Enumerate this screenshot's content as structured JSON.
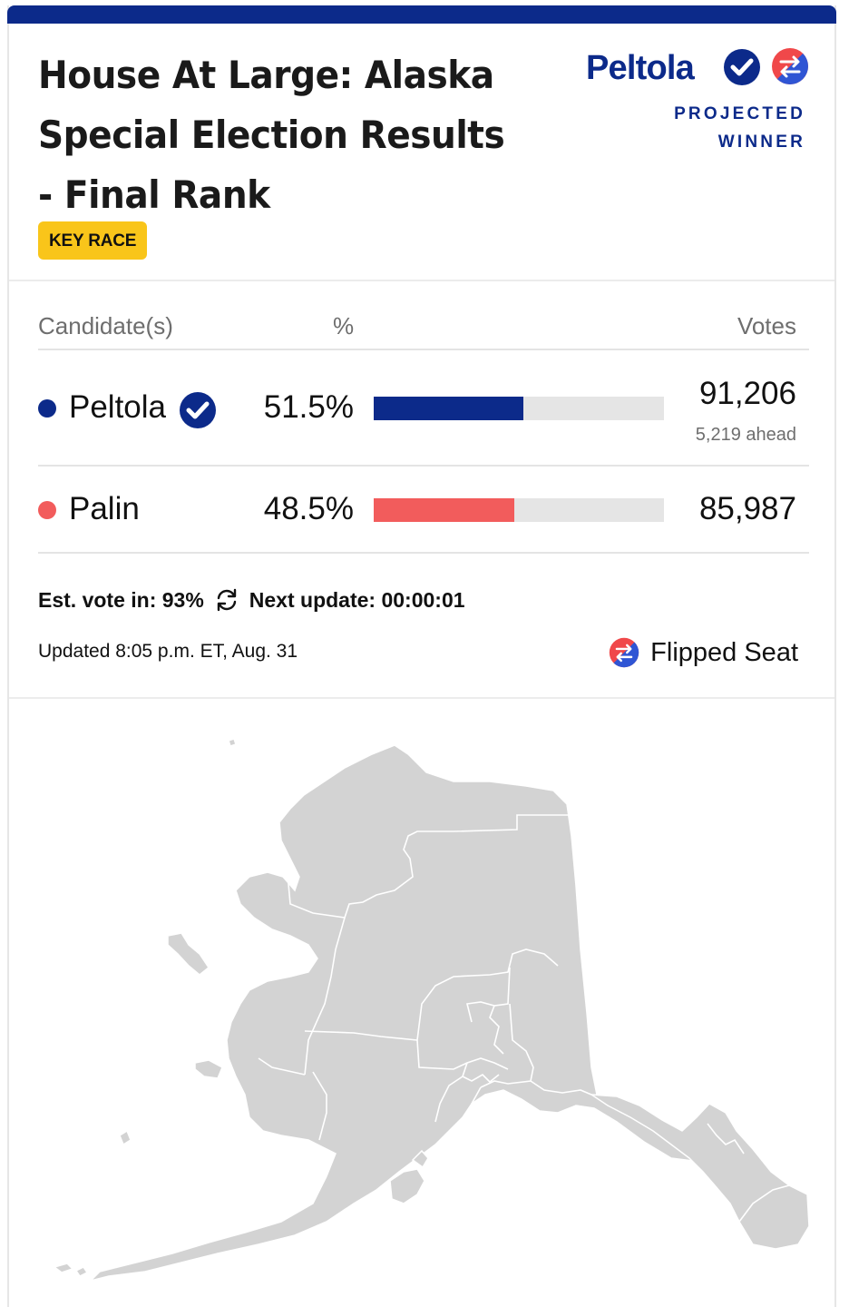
{
  "race": {
    "title": "House At Large: Alaska Special Election Results - Final Rank",
    "badge": "KEY RACE"
  },
  "winner": {
    "name": "Peltola",
    "status_line1": "PROJECTED",
    "status_line2": "WINNER",
    "check_icon": "check-circle-icon",
    "flip_icon": "flipped-seat-icon"
  },
  "table": {
    "headers": {
      "candidate": "Candidate(s)",
      "percent": "%",
      "votes": "Votes"
    },
    "candidates": [
      {
        "name": "Peltola",
        "percent": "51.5%",
        "percent_value": 51.5,
        "votes": "91,206",
        "lead": "5,219 ahead",
        "color": "#0c2a8a",
        "winner": true
      },
      {
        "name": "Palin",
        "percent": "48.5%",
        "percent_value": 48.5,
        "votes": "85,987",
        "lead": "",
        "color": "#f25c5c",
        "winner": false
      }
    ]
  },
  "status": {
    "est_vote_label": "Est. vote in: 93%",
    "next_update_label": "Next update: 00:00:01",
    "updated": "Updated 8:05 p.m. ET, Aug. 31",
    "flipped_label": "Flipped Seat"
  },
  "colors": {
    "dem": "#0c2a8a",
    "rep": "#f25c5c",
    "badge": "#f9c51a",
    "map_fill": "#d3d3d3"
  }
}
